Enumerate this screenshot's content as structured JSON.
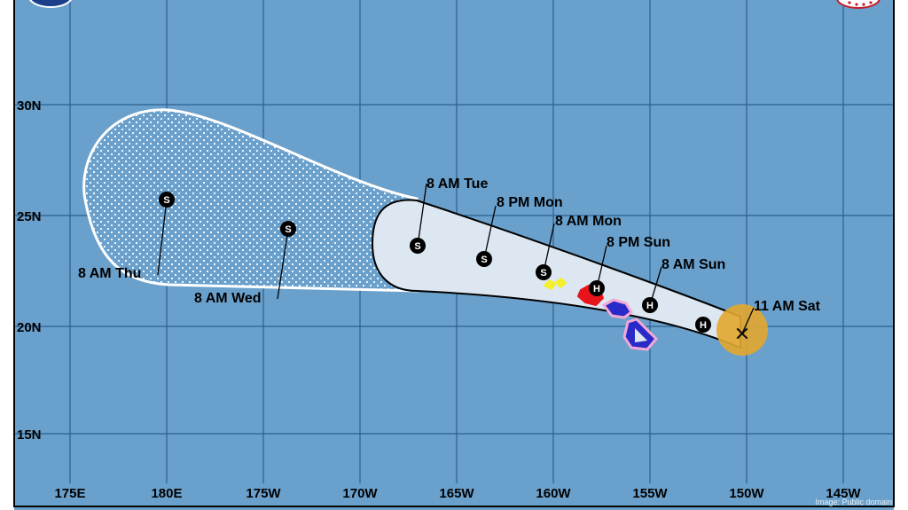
{
  "map": {
    "lat_labels": [
      "30N",
      "25N",
      "20N",
      "15N"
    ],
    "lon_labels": [
      "175E",
      "180E",
      "175W",
      "170W",
      "165W",
      "160W",
      "155W",
      "150W",
      "145W"
    ],
    "current_position": {
      "label": "11 AM Sat",
      "symbol": "✕"
    },
    "forecast_points": [
      {
        "symbol": "H",
        "label": ""
      },
      {
        "symbol": "H",
        "label": "8 AM Sun"
      },
      {
        "symbol": "H",
        "label": "8 PM Sun"
      },
      {
        "symbol": "S",
        "label": "8 AM Mon"
      },
      {
        "symbol": "S",
        "label": "8 PM Mon"
      },
      {
        "symbol": "S",
        "label": "8 AM Tue"
      },
      {
        "symbol": "S",
        "label": "8 AM Wed"
      },
      {
        "symbol": "S",
        "label": "8 AM Thu"
      }
    ],
    "credit": "Image: Public domain",
    "colors": {
      "ocean": "#6aa0cc",
      "grid": "#2a5f8f",
      "cone_day1_3": "#dce7f1",
      "cone_day4_5": "#ffffff",
      "current_circle": "#e3a72e",
      "land": "#2a2ac8",
      "land_border": "#f2a9d6",
      "hurricane_warning": "#e8141b",
      "tropical_storm_watch": "#f3ef2a"
    }
  }
}
